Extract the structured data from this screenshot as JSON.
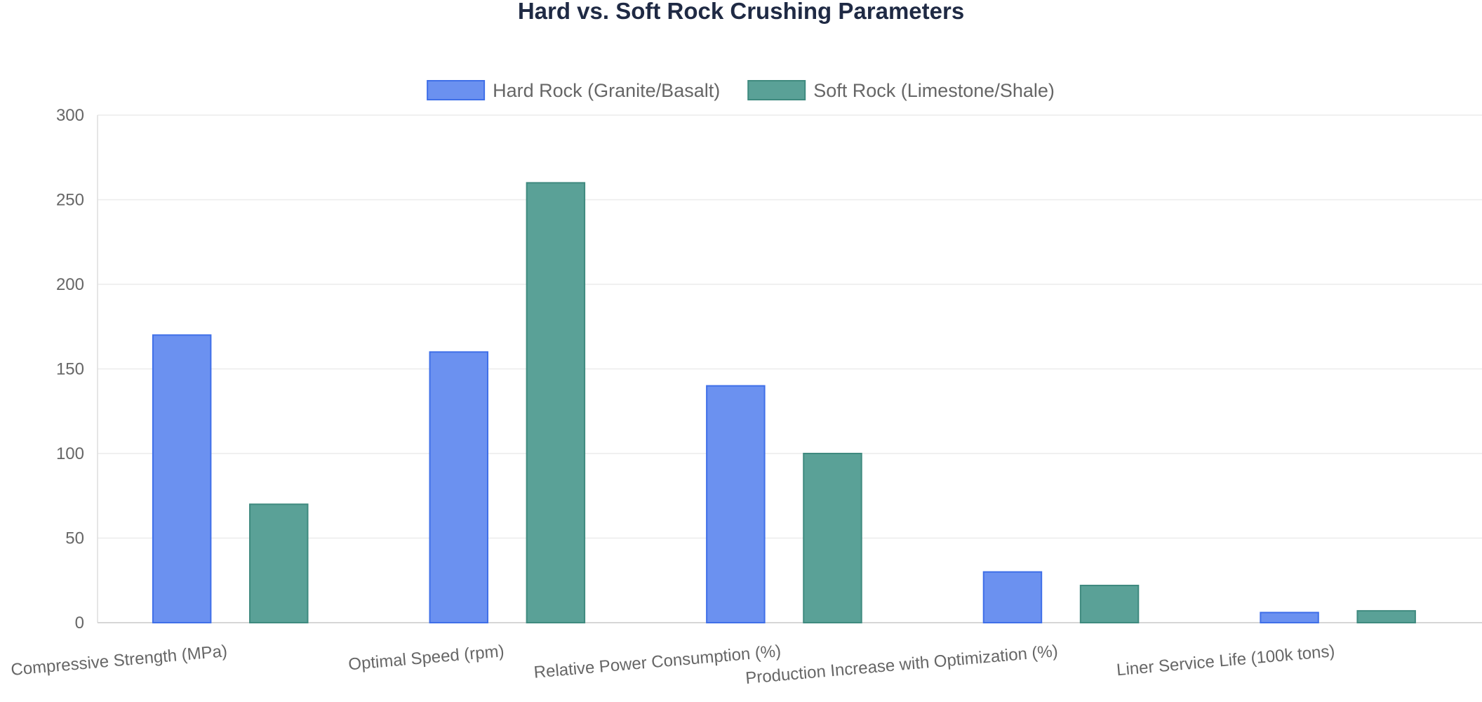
{
  "chart_data": {
    "type": "bar",
    "title": "Hard vs. Soft Rock Crushing Parameters",
    "xlabel": "",
    "ylabel": "",
    "categories": [
      "Compressive Strength (MPa)",
      "Optimal Speed (rpm)",
      "Relative Power Consumption (%)",
      "Production Increase with Optimization (%)",
      "Liner Service Life (100k tons)"
    ],
    "series": [
      {
        "name": "Hard Rock (Granite/Basalt)",
        "values": [
          170,
          160,
          140,
          30,
          6
        ],
        "color": "#6b91f0",
        "stroke": "#3f6fe8"
      },
      {
        "name": "Soft Rock (Limestone/Shale)",
        "values": [
          70,
          260,
          100,
          22,
          7
        ],
        "color": "#5aa197",
        "stroke": "#3f8a7f"
      }
    ],
    "ylim": [
      0,
      300
    ],
    "yticks": [
      0,
      50,
      100,
      150,
      200,
      250,
      300
    ],
    "grid": true,
    "legend_position": "top-center"
  }
}
